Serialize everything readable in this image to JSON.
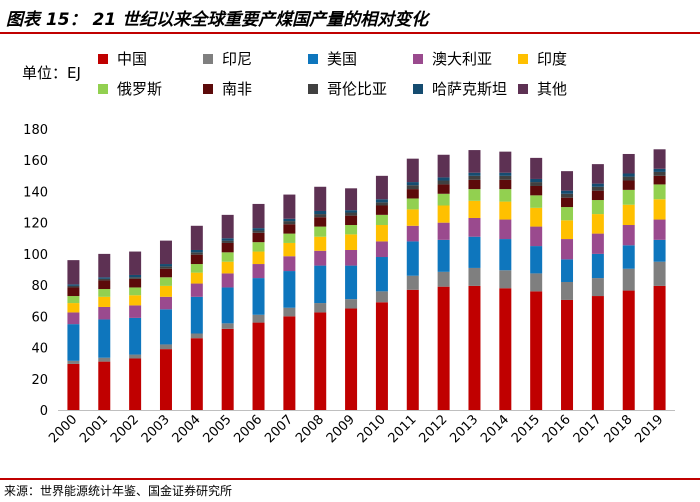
{
  "title": "图表 15： 21 世纪以来全球重要产煤国产量的相对变化",
  "source": "来源：世界能源统计年鉴、国金证券研究所",
  "chart_data": {
    "type": "bar",
    "stacked": true,
    "ylabel": "单位：EJ",
    "ylim": [
      0,
      180
    ],
    "yticks": [
      0,
      20,
      40,
      60,
      80,
      100,
      120,
      140,
      160,
      180
    ],
    "categories": [
      "2000",
      "2001",
      "2002",
      "2003",
      "2004",
      "2005",
      "2006",
      "2007",
      "2008",
      "2009",
      "2010",
      "2011",
      "2012",
      "2013",
      "2014",
      "2015",
      "2016",
      "2017",
      "2018",
      "2019"
    ],
    "series": [
      {
        "name": "中国",
        "color": "#c00000",
        "values": [
          29.5,
          31,
          33,
          39,
          46,
          52,
          56,
          60,
          62.5,
          65,
          69,
          77,
          79,
          79.5,
          78,
          76,
          70.5,
          73,
          76.5,
          79.5
        ]
      },
      {
        "name": "印尼",
        "color": "#7f7f7f",
        "values": [
          2,
          2.5,
          2.5,
          3,
          3,
          3.5,
          5,
          5.5,
          6,
          6,
          7,
          9,
          9.5,
          11.5,
          11.5,
          11.5,
          11.5,
          11.5,
          14,
          15.5
        ]
      },
      {
        "name": "美国",
        "color": "#0e76bd",
        "values": [
          23.5,
          24.5,
          23.5,
          22.5,
          23.5,
          23,
          23.5,
          23.5,
          24,
          21.5,
          22,
          22,
          20.5,
          20,
          20,
          17.5,
          14.5,
          15.5,
          15,
          14
        ]
      },
      {
        "name": "澳大利亚",
        "color": "#9a4a8e",
        "values": [
          7.5,
          8,
          8,
          8,
          8.5,
          9,
          9,
          9.5,
          9.5,
          10,
          10,
          10,
          11,
          12,
          12.5,
          12.5,
          13,
          13,
          13,
          13
        ]
      },
      {
        "name": "印度",
        "color": "#ffc000",
        "values": [
          6,
          6.5,
          6.5,
          7,
          7,
          7.5,
          8,
          8.5,
          9,
          10,
          10.5,
          10.5,
          11,
          11,
          11.5,
          12,
          12,
          12.5,
          13,
          13
        ]
      },
      {
        "name": "俄罗斯",
        "color": "#92d050",
        "values": [
          4.5,
          5,
          5,
          5.5,
          5.5,
          6,
          6,
          6,
          6.5,
          6,
          6.5,
          7,
          7.5,
          7.5,
          8,
          8,
          8.5,
          9,
          9.5,
          9.5
        ]
      },
      {
        "name": "南非",
        "color": "#5c0a0a",
        "values": [
          5.5,
          5.5,
          5.5,
          5.5,
          6,
          6,
          6,
          6,
          6,
          6,
          6,
          6,
          6,
          6,
          6,
          6,
          6,
          6,
          6,
          5.5
        ]
      },
      {
        "name": "哥伦比亚",
        "color": "#404040",
        "values": [
          1,
          1,
          1,
          1.5,
          1.5,
          1.5,
          1.5,
          2,
          2,
          2,
          2,
          2.5,
          2.5,
          2.5,
          2.5,
          2.5,
          2.5,
          2.5,
          2.5,
          2.5
        ]
      },
      {
        "name": "哈萨克斯坦",
        "color": "#154c70",
        "values": [
          1,
          1,
          1.5,
          1.5,
          1.5,
          1.5,
          1.5,
          1.5,
          2,
          1.5,
          2,
          2,
          2,
          2,
          2,
          2,
          2,
          2,
          2,
          2
        ]
      },
      {
        "name": "其他",
        "color": "#5d3153",
        "values": [
          15.5,
          15,
          15,
          15,
          15.5,
          15,
          15.5,
          15.5,
          15.5,
          14,
          15,
          15,
          14.5,
          14.5,
          13.5,
          13.5,
          12.5,
          12.5,
          12.5,
          12.5
        ]
      }
    ]
  }
}
